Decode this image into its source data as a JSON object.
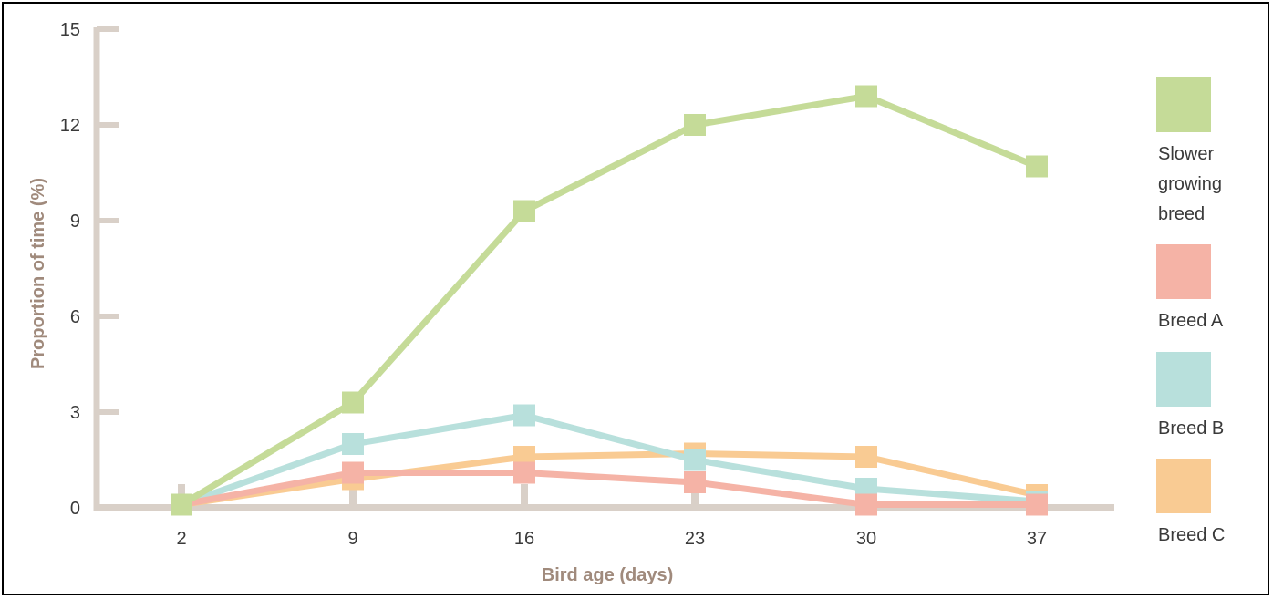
{
  "chart_data": {
    "type": "line",
    "title": "",
    "xlabel": "Bird age (days)",
    "ylabel": "Proportion of time (%)",
    "categories": [
      "2",
      "9",
      "16",
      "23",
      "30",
      "37"
    ],
    "x": [
      2,
      9,
      16,
      23,
      30,
      37
    ],
    "yticks": [
      "0",
      "3",
      "6",
      "9",
      "12",
      "15"
    ],
    "ylim": [
      0,
      15
    ],
    "grid": false,
    "legend_position": "right",
    "axis_color": "#d9d0c8",
    "series": [
      {
        "name": "Slower growing breed",
        "name_lines": [
          "Slower",
          "growing",
          "breed"
        ],
        "color": "#c5db98",
        "values": [
          0.1,
          3.3,
          9.3,
          12.0,
          12.9,
          10.7
        ]
      },
      {
        "name": "Breed A",
        "name_lines": [
          "Breed A"
        ],
        "color": "#f5b3a6",
        "values": [
          0.1,
          1.1,
          1.1,
          0.8,
          0.1,
          0.1
        ]
      },
      {
        "name": "Breed B",
        "name_lines": [
          "Breed B"
        ],
        "color": "#b8e0dc",
        "values": [
          0.1,
          2.0,
          2.9,
          1.5,
          0.6,
          0.2
        ]
      },
      {
        "name": "Breed C",
        "name_lines": [
          "Breed C"
        ],
        "color": "#f9cb93",
        "values": [
          0.1,
          0.9,
          1.6,
          1.7,
          1.6,
          0.4
        ]
      }
    ]
  }
}
